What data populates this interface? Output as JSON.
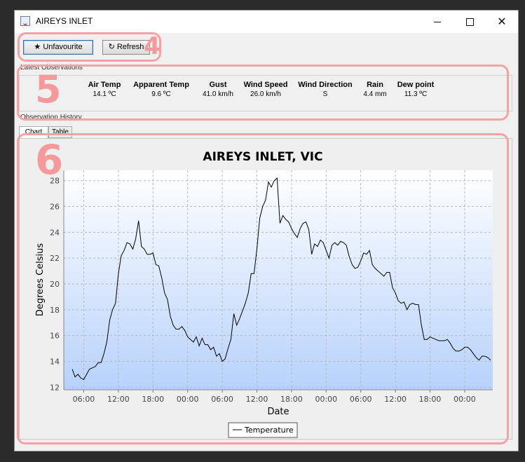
{
  "window": {
    "title": "AIREYS INLET",
    "controls": {
      "minimize": "",
      "maximize": "",
      "close": "✕"
    }
  },
  "toolbar": {
    "unfavourite_label": "★ Unfavourite",
    "refresh_label": "↻ Refresh"
  },
  "annotations": [
    "4",
    "5",
    "6"
  ],
  "latest": {
    "label": "Latest Observations",
    "columns": [
      {
        "header": "Air Temp",
        "value": "14.1 ºC"
      },
      {
        "header": "Apparent Temp",
        "value": "9.6 ºC"
      },
      {
        "header": "Gust",
        "value": "41.0 km/h"
      },
      {
        "header": "Wind Speed",
        "value": "26.0 km/h"
      },
      {
        "header": "Wind Direction",
        "value": "S"
      },
      {
        "header": "Rain",
        "value": "4.4 mm"
      },
      {
        "header": "Dew point",
        "value": "11.3 ºC"
      }
    ]
  },
  "history": {
    "label": "Observation History",
    "tabs": [
      {
        "label": "Chart"
      },
      {
        "label": "Table"
      }
    ]
  },
  "chart_data": {
    "type": "line",
    "title": "AIREYS INLET, VIC",
    "xlabel": "Date",
    "ylabel": "Degrees Celsius",
    "ylim": [
      11.8,
      28.8
    ],
    "yticks": [
      12,
      14,
      16,
      18,
      20,
      22,
      24,
      26,
      28
    ],
    "xticks": [
      "06:00",
      "12:00",
      "18:00",
      "00:00",
      "06:00",
      "12:00",
      "18:00",
      "00:00",
      "06:00",
      "12:00",
      "18:00",
      "00:00"
    ],
    "grid": true,
    "legend": "bottom-center",
    "series": [
      {
        "name": "Temperature",
        "color": "#000000",
        "values": [
          13.4,
          12.8,
          13.0,
          12.7,
          12.6,
          13.0,
          13.4,
          13.5,
          13.6,
          13.9,
          13.9,
          14.6,
          15.5,
          17.2,
          18.0,
          18.5,
          20.8,
          22.2,
          22.6,
          23.2,
          23.1,
          22.7,
          23.5,
          24.9,
          22.9,
          22.7,
          22.3,
          22.3,
          22.4,
          21.5,
          21.4,
          20.5,
          19.3,
          18.8,
          17.5,
          16.8,
          16.5,
          16.5,
          16.7,
          16.4,
          15.9,
          15.7,
          15.5,
          15.9,
          15.2,
          15.8,
          15.3,
          15.3,
          14.9,
          15.1,
          14.4,
          14.6,
          14.0,
          14.2,
          15.0,
          15.7,
          17.7,
          16.8,
          17.3,
          17.9,
          18.5,
          19.3,
          20.8,
          20.8,
          22.7,
          25.1,
          26.0,
          26.5,
          27.9,
          27.5,
          28.0,
          28.2,
          24.7,
          25.3,
          25.0,
          24.8,
          24.3,
          23.9,
          23.6,
          24.3,
          24.7,
          24.8,
          24.2,
          22.3,
          23.1,
          22.9,
          23.4,
          23.2,
          22.6,
          22.0,
          23.0,
          23.2,
          23.0,
          23.3,
          23.2,
          23.0,
          22.1,
          21.5,
          21.2,
          21.3,
          21.8,
          22.4,
          22.3,
          22.6,
          21.5,
          21.2,
          21.0,
          20.8,
          20.6,
          20.9,
          20.9,
          19.7,
          19.3,
          18.7,
          18.5,
          18.6,
          18.0,
          18.4,
          18.5,
          18.4,
          18.4,
          16.8,
          15.7,
          15.7,
          15.9,
          15.8,
          15.7,
          15.6,
          15.6,
          15.6,
          15.7,
          15.4,
          15.0,
          14.8,
          14.8,
          14.9,
          15.1,
          15.1,
          14.9,
          14.6,
          14.3,
          14.1,
          14.4,
          14.4,
          14.3,
          14.1
        ]
      }
    ]
  }
}
